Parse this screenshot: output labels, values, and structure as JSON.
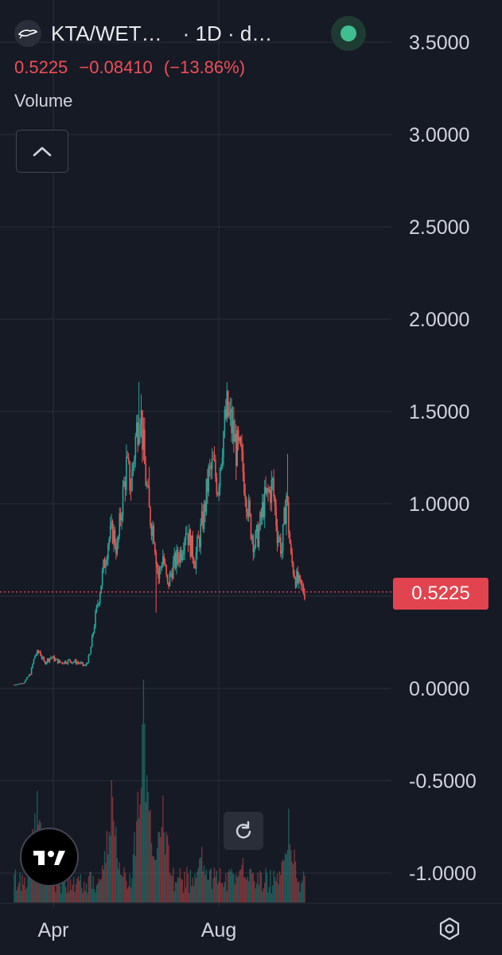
{
  "header": {
    "title": "KTA/WET…",
    "interval": "· 1D · d…",
    "last_price": "0.5225",
    "change": "−0.08410",
    "change_pct": "(−13.86%)",
    "volume_label": "Volume"
  },
  "icons": {
    "logo": "fish-logo-icon",
    "collapse": "chevron-up-icon",
    "reset": "reset-chart-icon",
    "brand": "tradingview-logo-icon",
    "settings": "settings-gear-icon",
    "status": "market-open-dot-icon"
  },
  "colors": {
    "background": "#161a25",
    "up": "#26a69a",
    "down": "#ef5350",
    "price_line": "#e2444f",
    "grid": "#2a2e39"
  },
  "chart_data": {
    "type": "candlestick",
    "ylim": [
      -1.15,
      3.7
    ],
    "y_ticks": [
      "3.5000",
      "3.0000",
      "2.5000",
      "2.0000",
      "1.5000",
      "1.0000",
      "0.5000",
      "0.0000",
      "-0.5000",
      "-1.0000"
    ],
    "y_tick_values": [
      3.5,
      3.0,
      2.5,
      2.0,
      1.5,
      1.0,
      0.5,
      0.0,
      -0.5,
      -1.0
    ],
    "x_ticks": [
      "Apr",
      "Aug"
    ],
    "last_price_label": "0.5225",
    "last_price": 0.5225,
    "price_anchors": [
      [
        0,
        0.02
      ],
      [
        8,
        0.03
      ],
      [
        14,
        0.08
      ],
      [
        18,
        0.18
      ],
      [
        22,
        0.2
      ],
      [
        26,
        0.14
      ],
      [
        32,
        0.17
      ],
      [
        40,
        0.14
      ],
      [
        48,
        0.15
      ],
      [
        56,
        0.14
      ],
      [
        62,
        0.12
      ],
      [
        66,
        0.18
      ],
      [
        70,
        0.35
      ],
      [
        74,
        0.5
      ],
      [
        78,
        0.65
      ],
      [
        82,
        0.8
      ],
      [
        86,
        0.85
      ],
      [
        90,
        0.75
      ],
      [
        94,
        1.0
      ],
      [
        98,
        1.2
      ],
      [
        102,
        1.1
      ],
      [
        106,
        1.35
      ],
      [
        110,
        1.55
      ],
      [
        114,
        1.2
      ],
      [
        118,
        0.95
      ],
      [
        122,
        0.85
      ],
      [
        126,
        0.6
      ],
      [
        130,
        0.72
      ],
      [
        134,
        0.55
      ],
      [
        138,
        0.65
      ],
      [
        142,
        0.7
      ],
      [
        146,
        0.75
      ],
      [
        150,
        0.88
      ],
      [
        154,
        0.78
      ],
      [
        158,
        0.7
      ],
      [
        162,
        0.82
      ],
      [
        166,
        0.95
      ],
      [
        170,
        1.15
      ],
      [
        174,
        1.2
      ],
      [
        178,
        1.1
      ],
      [
        182,
        1.35
      ],
      [
        186,
        1.5
      ],
      [
        190,
        1.42
      ],
      [
        194,
        1.3
      ],
      [
        198,
        1.25
      ],
      [
        202,
        1.1
      ],
      [
        206,
        0.9
      ],
      [
        210,
        0.78
      ],
      [
        214,
        0.85
      ],
      [
        218,
        1.0
      ],
      [
        222,
        1.05
      ],
      [
        226,
        1.1
      ],
      [
        230,
        0.85
      ],
      [
        234,
        0.75
      ],
      [
        238,
        1.05
      ],
      [
        242,
        0.7
      ],
      [
        246,
        0.6
      ],
      [
        250,
        0.55
      ],
      [
        254,
        0.52
      ]
    ],
    "spikes": [
      {
        "i": 109,
        "high": 1.66
      },
      {
        "i": 118,
        "high": 1.2
      },
      {
        "i": 124,
        "low": 0.41
      },
      {
        "i": 184,
        "high": 1.53
      },
      {
        "i": 239,
        "high": 1.27
      }
    ],
    "volume_ylim_fraction": 1.0,
    "volume_peaks": [
      {
        "i": 113,
        "v": 1.0
      },
      {
        "i": 20,
        "v": 0.5
      },
      {
        "i": 85,
        "v": 0.55
      },
      {
        "i": 130,
        "v": 0.48
      },
      {
        "i": 240,
        "v": 0.42
      },
      {
        "i": 164,
        "v": 0.25
      },
      {
        "i": 200,
        "v": 0.2
      }
    ]
  }
}
